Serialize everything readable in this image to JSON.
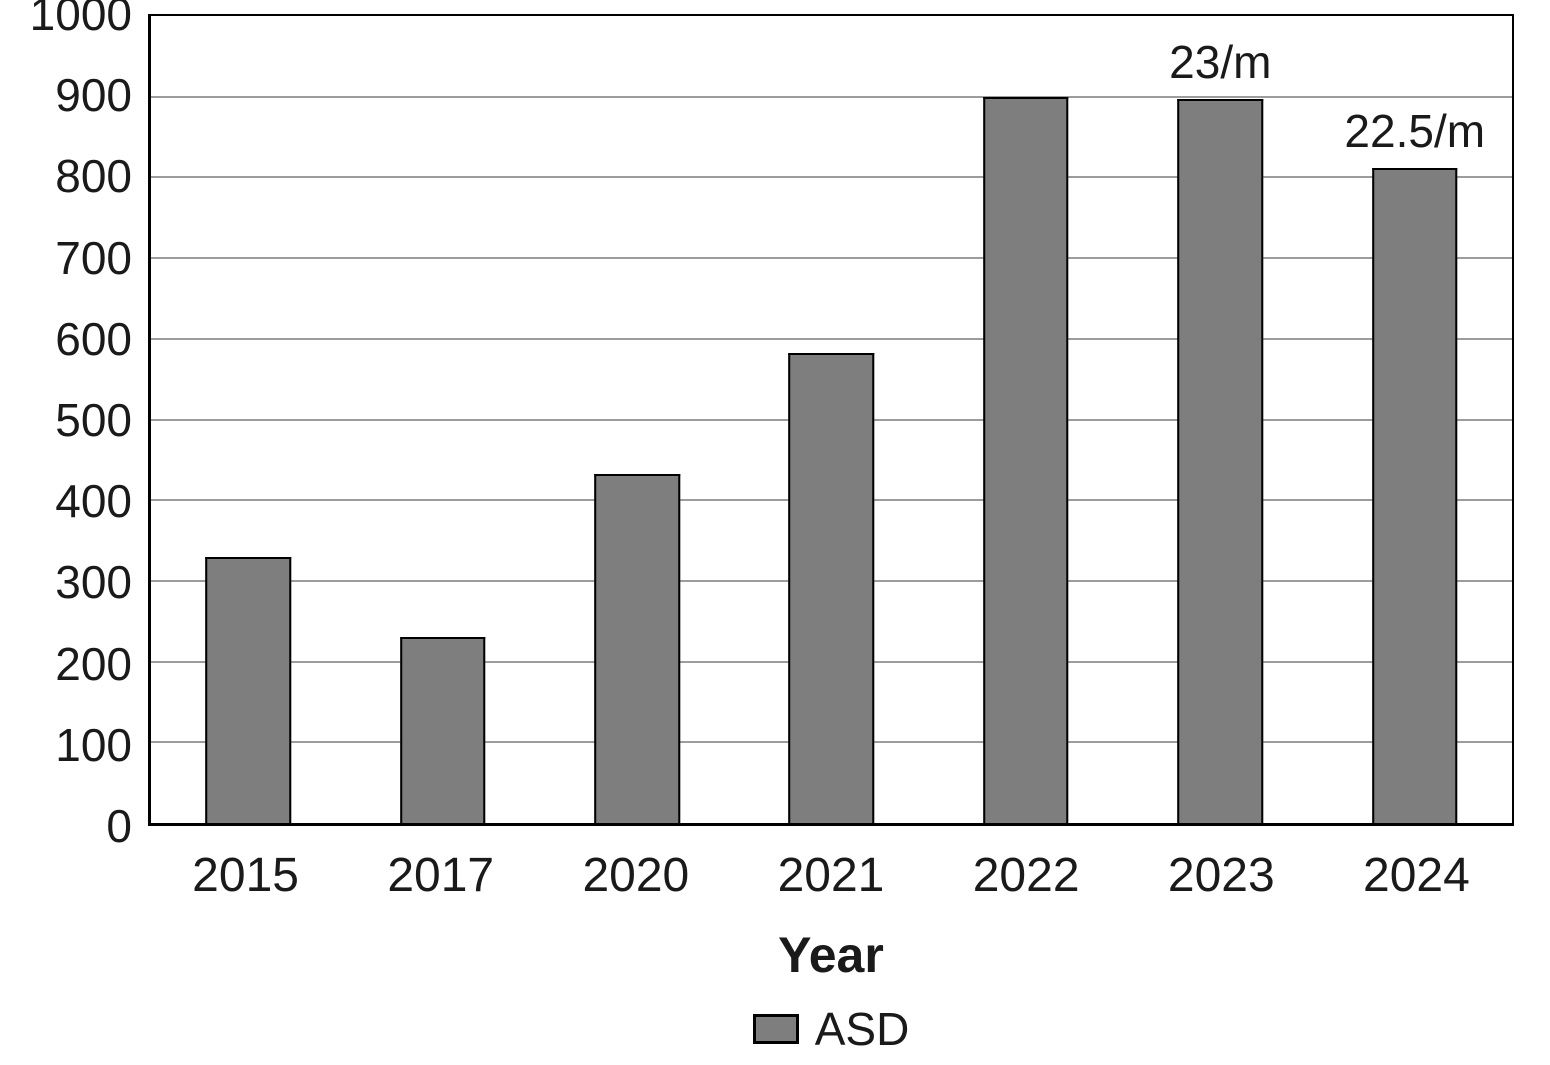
{
  "chart_data": {
    "type": "bar",
    "title": "",
    "xlabel": "Year",
    "ylabel": "",
    "categories": [
      "2015",
      "2017",
      "2020",
      "2021",
      "2022",
      "2023",
      "2024"
    ],
    "values": [
      330,
      230,
      432,
      583,
      900,
      897,
      812
    ],
    "bar_labels": [
      "",
      "",
      "",
      "",
      "",
      "23/m",
      "22.5/m"
    ],
    "ylim": [
      0,
      1000
    ],
    "ytick_step": 100,
    "grid": "horizontal",
    "legend": {
      "position": "bottom",
      "entries": [
        {
          "label": "ASD",
          "color": "#7e7e7e"
        }
      ]
    },
    "colors": {
      "bar_fill": "#7e7e7e",
      "bar_border": "#000000",
      "gridline": "#9c9c9c",
      "axis": "#000000"
    }
  }
}
